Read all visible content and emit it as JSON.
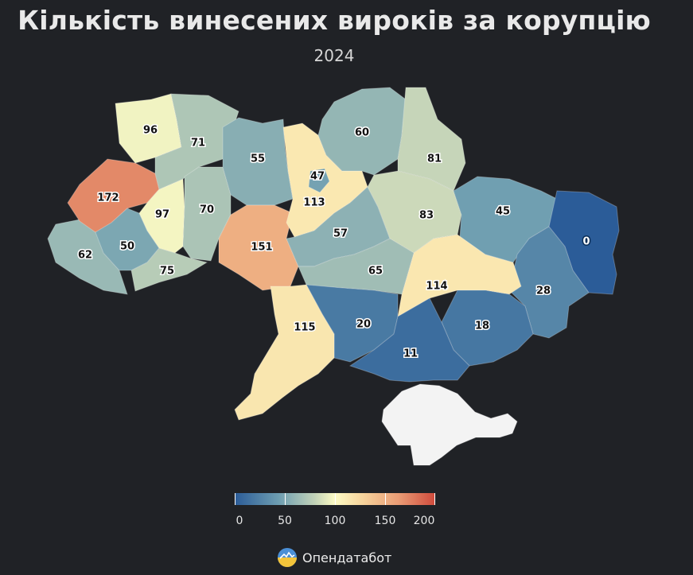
{
  "header": {
    "title": "Кількість винесених вироків за корупцію",
    "subtitle": "2024"
  },
  "map_data": {
    "type": "choropleth",
    "country": "Ukraine",
    "regions": [
      {
        "name": "volyn",
        "value": 96
      },
      {
        "name": "rivne",
        "value": 71
      },
      {
        "name": "zhytomyr",
        "value": 55
      },
      {
        "name": "kyiv-oblast",
        "value": 113
      },
      {
        "name": "kyiv-city",
        "value": 47
      },
      {
        "name": "chernihiv",
        "value": 60
      },
      {
        "name": "sumy",
        "value": 81
      },
      {
        "name": "poltava",
        "value": 83
      },
      {
        "name": "kharkiv",
        "value": 45
      },
      {
        "name": "luhansk",
        "value": 0
      },
      {
        "name": "lviv",
        "value": 172
      },
      {
        "name": "ternopil",
        "value": 97
      },
      {
        "name": "khmelnytskyi",
        "value": 70
      },
      {
        "name": "vinnytsia",
        "value": 151
      },
      {
        "name": "cherkasy",
        "value": 57
      },
      {
        "name": "kirovohrad",
        "value": 65
      },
      {
        "name": "dnipropetrovsk",
        "value": 114
      },
      {
        "name": "donetsk",
        "value": 28
      },
      {
        "name": "zakarpattia",
        "value": 62
      },
      {
        "name": "ivano-frankivsk",
        "value": 50
      },
      {
        "name": "chernivtsi",
        "value": 75
      },
      {
        "name": "odesa",
        "value": 115
      },
      {
        "name": "mykolaiv",
        "value": 20
      },
      {
        "name": "kherson",
        "value": 11
      },
      {
        "name": "zaporizhzhia",
        "value": 18
      },
      {
        "name": "crimea",
        "value": null
      }
    ]
  },
  "legend": {
    "ticks": [
      "0",
      "50",
      "100",
      "150",
      "200"
    ],
    "min": 0,
    "max": 200
  },
  "brand": {
    "name": "Опендатабот"
  }
}
